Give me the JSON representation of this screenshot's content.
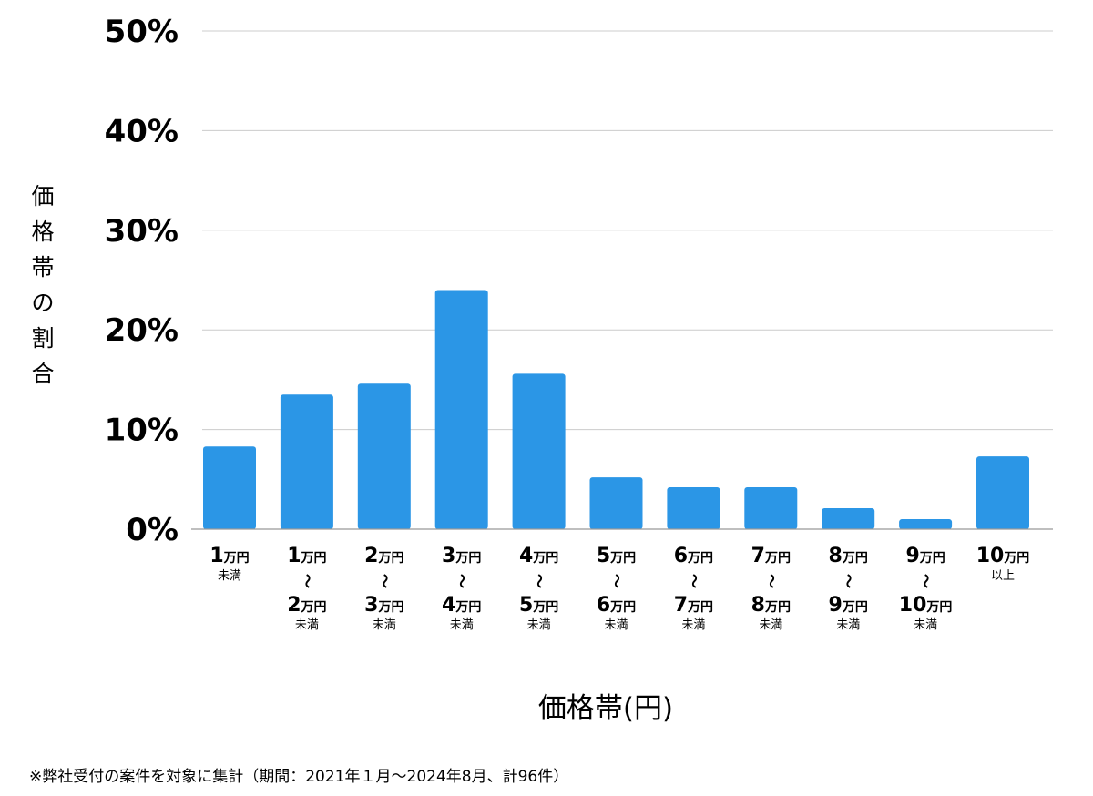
{
  "chart_data": {
    "type": "bar",
    "title": "",
    "xlabel": "価格帯(円)",
    "ylabel": "価格帯の割合",
    "ylim": [
      0,
      50
    ],
    "yticks": [
      "0%",
      "10%",
      "20%",
      "30%",
      "40%",
      "50%"
    ],
    "ytick_values": [
      0,
      10,
      20,
      30,
      40,
      50
    ],
    "grid": true,
    "bar_color": "#2b96e6",
    "categories": [
      {
        "from": "1",
        "from_unit": "万円",
        "to": "",
        "to_unit": "",
        "sep": "",
        "suffix": "未満"
      },
      {
        "from": "1",
        "from_unit": "万円",
        "sep": "〜",
        "to": "2",
        "to_unit": "万円",
        "suffix": "未満"
      },
      {
        "from": "2",
        "from_unit": "万円",
        "sep": "〜",
        "to": "3",
        "to_unit": "万円",
        "suffix": "未満"
      },
      {
        "from": "3",
        "from_unit": "万円",
        "sep": "〜",
        "to": "4",
        "to_unit": "万円",
        "suffix": "未満"
      },
      {
        "from": "4",
        "from_unit": "万円",
        "sep": "〜",
        "to": "5",
        "to_unit": "万円",
        "suffix": "未満"
      },
      {
        "from": "5",
        "from_unit": "万円",
        "sep": "〜",
        "to": "6",
        "to_unit": "万円",
        "suffix": "未満"
      },
      {
        "from": "6",
        "from_unit": "万円",
        "sep": "〜",
        "to": "7",
        "to_unit": "万円",
        "suffix": "未満"
      },
      {
        "from": "7",
        "from_unit": "万円",
        "sep": "〜",
        "to": "8",
        "to_unit": "万円",
        "suffix": "未満"
      },
      {
        "from": "8",
        "from_unit": "万円",
        "sep": "〜",
        "to": "9",
        "to_unit": "万円",
        "suffix": "未満"
      },
      {
        "from": "9",
        "from_unit": "万円",
        "sep": "〜",
        "to": "10",
        "to_unit": "万円",
        "suffix": "未満"
      },
      {
        "from": "10",
        "from_unit": "万円",
        "to": "",
        "to_unit": "",
        "sep": "",
        "suffix": "以上"
      }
    ],
    "values": [
      8.3,
      13.5,
      14.6,
      24.0,
      15.6,
      5.2,
      4.2,
      4.2,
      2.1,
      1.0,
      7.3
    ]
  },
  "footnote": "※弊社受付の案件を対象に集計（期間：2021年１月〜2024年8月、計96件）"
}
